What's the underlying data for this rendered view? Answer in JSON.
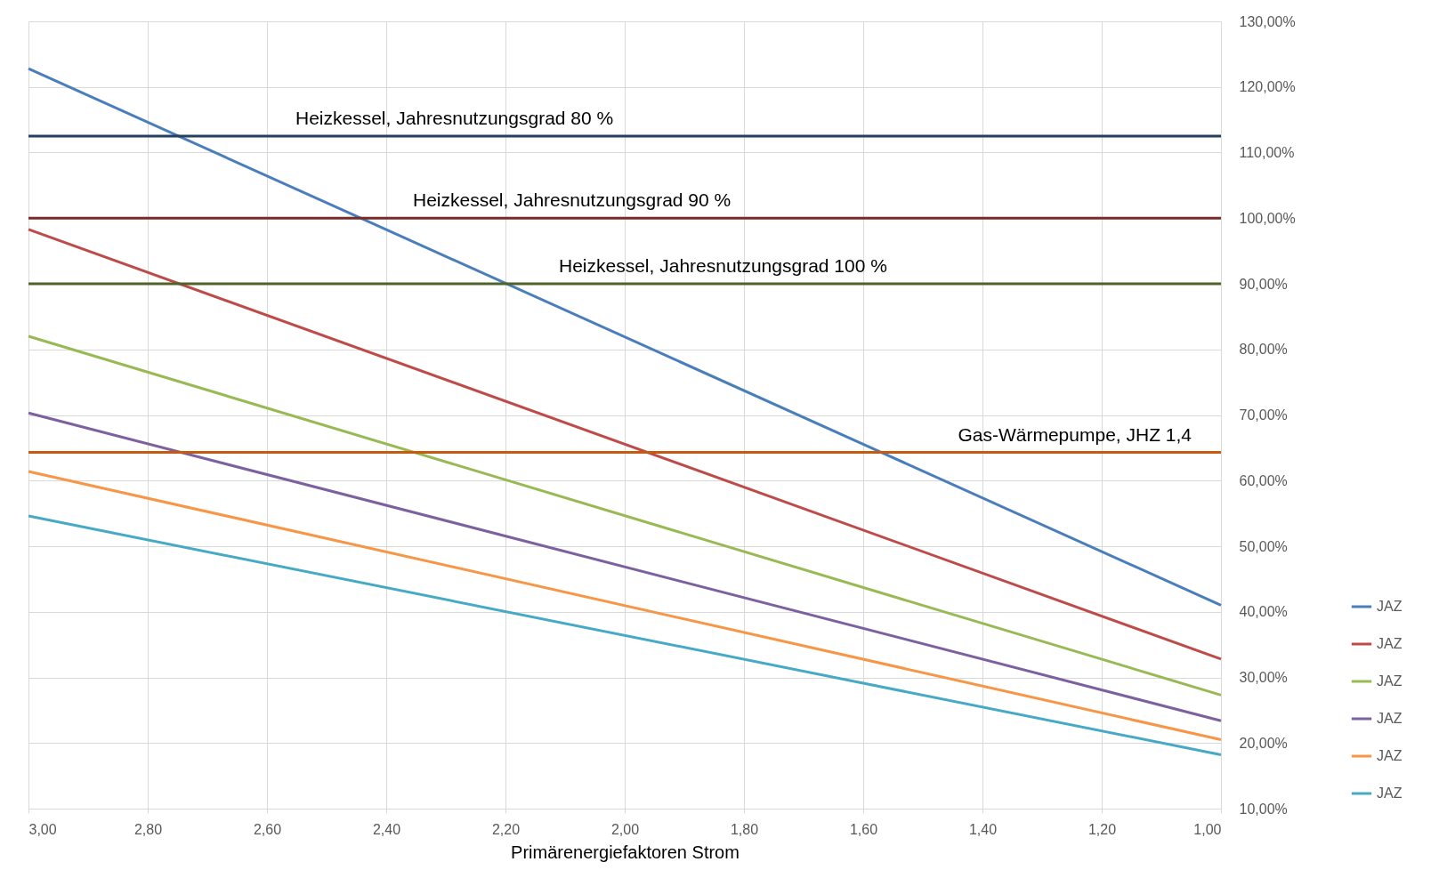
{
  "chart_data": {
    "type": "line",
    "xlabel": "Primärenergiefaktoren Strom",
    "x": [
      3,
      1
    ],
    "series": [
      {
        "name": "JAZ",
        "color": "#4a7ebb",
        "values": [
          122.8,
          41.0
        ]
      },
      {
        "name": "JAZ",
        "color": "#be4b48",
        "values": [
          98.3,
          32.8
        ]
      },
      {
        "name": "JAZ",
        "color": "#98b954",
        "values": [
          82.0,
          27.3
        ]
      },
      {
        "name": "JAZ",
        "color": "#7d60a0",
        "values": [
          70.3,
          23.4
        ]
      },
      {
        "name": "JAZ",
        "color": "#f79646",
        "values": [
          61.4,
          20.5
        ]
      },
      {
        "name": "JAZ",
        "color": "#46aac5",
        "values": [
          54.6,
          18.2
        ]
      }
    ],
    "ref_lines": [
      {
        "axis": "y",
        "value": 112.5,
        "color": "#243f60",
        "label": "Heizkessel, Jahresnutzungsgrad 80 %"
      },
      {
        "axis": "y",
        "value": 100,
        "color": "#772c2a",
        "label": "Heizkessel, Jahresnutzungsgrad 90 %"
      },
      {
        "axis": "y",
        "value": 90,
        "color": "#4f6228",
        "label": "Heizkessel, Jahresnutzungsgrad 100 %"
      },
      {
        "axis": "y",
        "value": 64.3,
        "color": "#c55a11",
        "label": "Gas-Wärmepumpe, JHZ 1,4"
      }
    ],
    "xlim": [
      3,
      1
    ],
    "xticks": [
      {
        "value": 3,
        "label": "3,00"
      },
      {
        "value": 2.8,
        "label": "2,80"
      },
      {
        "value": 2.6,
        "label": "2,60"
      },
      {
        "value": 2.4,
        "label": "2,40"
      },
      {
        "value": 2.2,
        "label": "2,20"
      },
      {
        "value": 2,
        "label": "2,00"
      },
      {
        "value": 1.8,
        "label": "1,80"
      },
      {
        "value": 1.6,
        "label": "1,60"
      },
      {
        "value": 1.4,
        "label": "1,40"
      },
      {
        "value": 1.2,
        "label": "1,20"
      },
      {
        "value": 1,
        "label": "1,00"
      }
    ],
    "ylim": [
      10,
      130
    ],
    "yticks": [
      {
        "value": 10,
        "label": "10,00%"
      },
      {
        "value": 20,
        "label": "20,00%"
      },
      {
        "value": 30,
        "label": "30,00%"
      },
      {
        "value": 40,
        "label": "40,00%"
      },
      {
        "value": 50,
        "label": "50,00%"
      },
      {
        "value": 60,
        "label": "60,00%"
      },
      {
        "value": 70,
        "label": "70,00%"
      },
      {
        "value": 80,
        "label": "80,00%"
      },
      {
        "value": 90,
        "label": "90,00%"
      },
      {
        "value": 100,
        "label": "100,00%"
      },
      {
        "value": 110,
        "label": "110,00%"
      },
      {
        "value": 120,
        "label": "120,00%"
      },
      {
        "value": 130,
        "label": "130,00%"
      }
    ],
    "grid": true,
    "legend": "right",
    "marker": "none",
    "line_style": "solid"
  }
}
